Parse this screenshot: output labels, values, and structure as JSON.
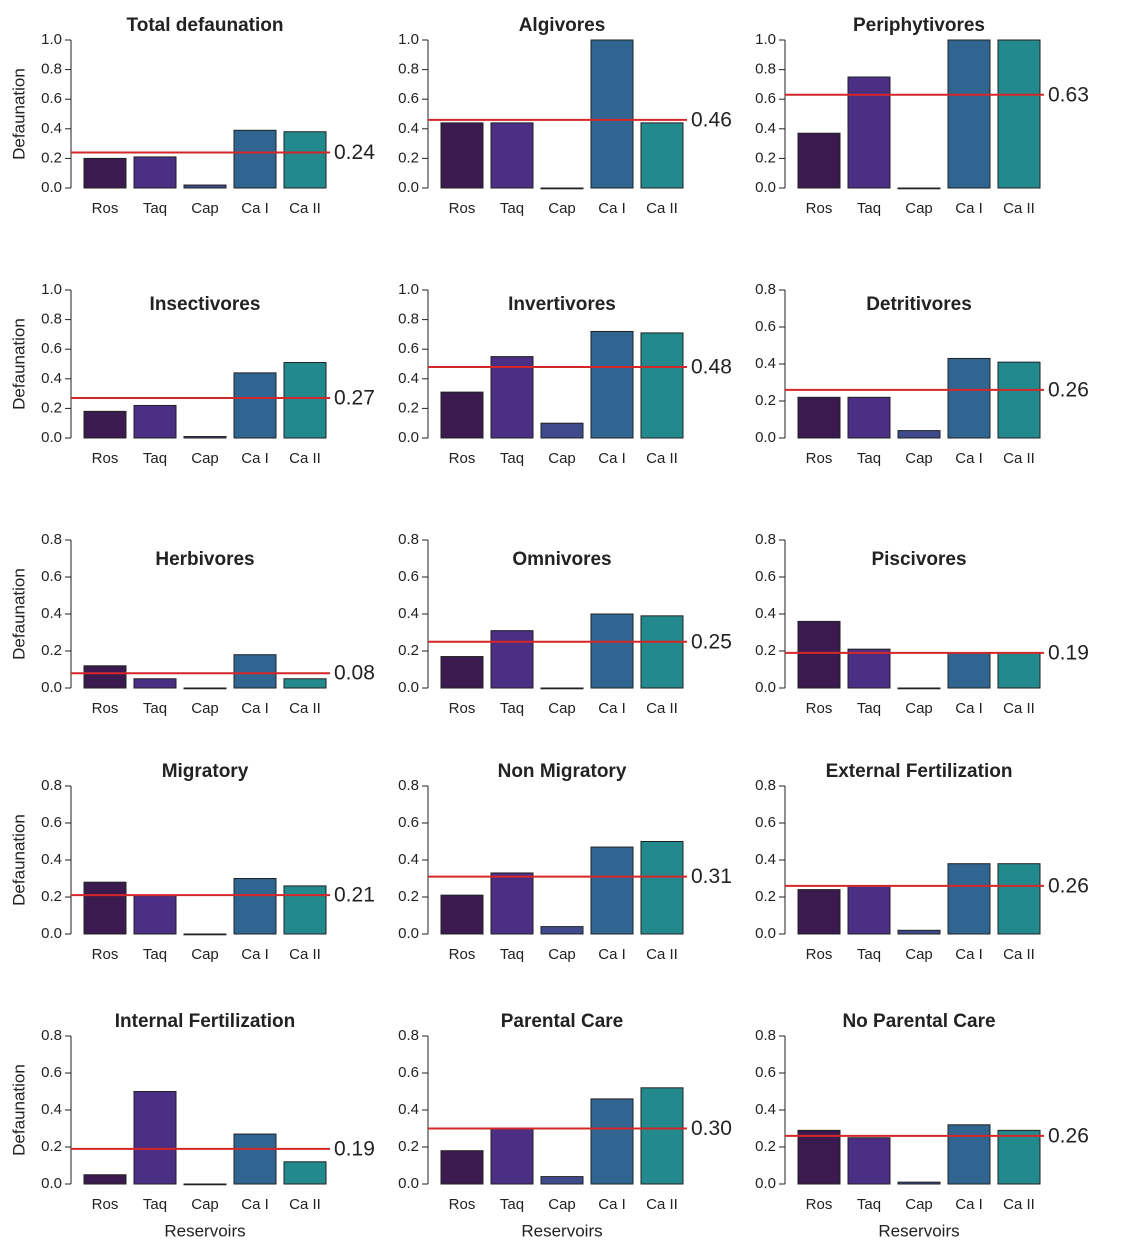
{
  "chart_data": [
    {
      "type": "bar",
      "title": "Total defaunation",
      "ylabel": "Defaunation",
      "categories": [
        "Ros",
        "Taq",
        "Cap",
        "Ca I",
        "Ca II"
      ],
      "values": [
        0.2,
        0.21,
        0.02,
        0.39,
        0.38
      ],
      "colors": [
        "#3b1a4f",
        "#4a2f85",
        "#3f4a8c",
        "#2f6590",
        "#228a8d"
      ],
      "ylim": [
        0,
        1
      ],
      "yticks": [
        {
          "value": 0,
          "label": "0.0"
        },
        0.2,
        0.4,
        0.6,
        0.8,
        {
          "value": 1,
          "label": "1.0"
        }
      ],
      "hline": 0.24,
      "hline_color": "#d62728"
    },
    {
      "type": "bar",
      "title": "Algivores",
      "categories": [
        "Ros",
        "Taq",
        "Cap",
        "Ca I",
        "Ca II"
      ],
      "values": [
        0.44,
        0.44,
        0,
        1.0,
        0.44
      ],
      "colors": [
        "#3b1a4f",
        "#4a2f85",
        "#3f4a8c",
        "#2f6590",
        "#228a8d"
      ],
      "ylim": [
        0,
        1
      ],
      "yticks": [
        {
          "value": 0,
          "label": "0.0"
        },
        0.2,
        0.4,
        0.6,
        0.8,
        {
          "value": 1,
          "label": "1.0"
        }
      ],
      "hline": 0.46,
      "hline_color": "#d62728"
    },
    {
      "type": "bar",
      "title": "Periphytivores",
      "categories": [
        "Ros",
        "Taq",
        "Cap",
        "Ca I",
        "Ca II"
      ],
      "values": [
        0.37,
        0.75,
        0,
        1.0,
        1.0
      ],
      "colors": [
        "#3b1a4f",
        "#4a2f85",
        "#3f4a8c",
        "#2f6590",
        "#228a8d"
      ],
      "ylim": [
        0,
        1
      ],
      "yticks": [
        {
          "value": 0,
          "label": "0.0"
        },
        0.2,
        0.4,
        0.6,
        0.8,
        {
          "value": 1,
          "label": "1.0"
        }
      ],
      "hline": 0.63,
      "hline_color": "#d62728"
    },
    {
      "type": "bar",
      "title": "Insectivores",
      "ylabel": "Defaunation",
      "categories": [
        "Ros",
        "Taq",
        "Cap",
        "Ca I",
        "Ca II"
      ],
      "values": [
        0.18,
        0.22,
        0.01,
        0.44,
        0.51
      ],
      "colors": [
        "#3b1a4f",
        "#4a2f85",
        "#3f4a8c",
        "#2f6590",
        "#228a8d"
      ],
      "ylim": [
        0,
        1
      ],
      "yticks": [
        {
          "value": 0,
          "label": "0.0"
        },
        0.2,
        0.4,
        0.6,
        0.8,
        {
          "value": 1,
          "label": "1.0"
        }
      ],
      "hline": 0.27,
      "hline_color": "#d62728"
    },
    {
      "type": "bar",
      "title": "Invertivores",
      "categories": [
        "Ros",
        "Taq",
        "Cap",
        "Ca I",
        "Ca II"
      ],
      "values": [
        0.31,
        0.55,
        0.1,
        0.72,
        0.71
      ],
      "colors": [
        "#3b1a4f",
        "#4a2f85",
        "#3f4a8c",
        "#2f6590",
        "#228a8d"
      ],
      "ylim": [
        0,
        1
      ],
      "yticks": [
        {
          "value": 0,
          "label": "0.0"
        },
        0.2,
        0.4,
        0.6,
        0.8,
        {
          "value": 1,
          "label": "1.0"
        }
      ],
      "hline": 0.48,
      "hline_color": "#d62728"
    },
    {
      "type": "bar",
      "title": "Detritivores",
      "categories": [
        "Ros",
        "Taq",
        "Cap",
        "Ca I",
        "Ca II"
      ],
      "values": [
        0.22,
        0.22,
        0.04,
        0.43,
        0.41
      ],
      "colors": [
        "#3b1a4f",
        "#4a2f85",
        "#3f4a8c",
        "#2f6590",
        "#228a8d"
      ],
      "ylim": [
        0,
        0.8
      ],
      "yticks": [
        {
          "value": 0,
          "label": "0.0"
        },
        0.2,
        0.4,
        0.6,
        0.8
      ],
      "hline": 0.26,
      "hline_color": "#d62728"
    },
    {
      "type": "bar",
      "title": "Herbivores",
      "ylabel": "Defaunation",
      "categories": [
        "Ros",
        "Taq",
        "Cap",
        "Ca I",
        "Ca II"
      ],
      "values": [
        0.12,
        0.05,
        0,
        0.18,
        0.05
      ],
      "colors": [
        "#3b1a4f",
        "#4a2f85",
        "#3f4a8c",
        "#2f6590",
        "#228a8d"
      ],
      "ylim": [
        0,
        0.8
      ],
      "yticks": [
        {
          "value": 0,
          "label": "0.0"
        },
        0.2,
        0.4,
        0.6,
        0.8
      ],
      "hline": 0.08,
      "hline_color": "#d62728"
    },
    {
      "type": "bar",
      "title": "Omnivores",
      "categories": [
        "Ros",
        "Taq",
        "Cap",
        "Ca I",
        "Ca II"
      ],
      "values": [
        0.17,
        0.31,
        0,
        0.4,
        0.39
      ],
      "colors": [
        "#3b1a4f",
        "#4a2f85",
        "#3f4a8c",
        "#2f6590",
        "#228a8d"
      ],
      "ylim": [
        0,
        0.8
      ],
      "yticks": [
        {
          "value": 0,
          "label": "0.0"
        },
        0.2,
        0.4,
        0.6,
        0.8
      ],
      "hline": 0.25,
      "hline_color": "#d62728"
    },
    {
      "type": "bar",
      "title": "Piscivores",
      "categories": [
        "Ros",
        "Taq",
        "Cap",
        "Ca I",
        "Ca II"
      ],
      "values": [
        0.36,
        0.21,
        0,
        0.19,
        0.19
      ],
      "colors": [
        "#3b1a4f",
        "#4a2f85",
        "#3f4a8c",
        "#2f6590",
        "#228a8d"
      ],
      "ylim": [
        0,
        0.8
      ],
      "yticks": [
        {
          "value": 0,
          "label": "0.0"
        },
        0.2,
        0.4,
        0.6,
        0.8
      ],
      "hline": 0.19,
      "hline_color": "#d62728"
    },
    {
      "type": "bar",
      "title": "Migratory",
      "ylabel": "Defaunation",
      "categories": [
        "Ros",
        "Taq",
        "Cap",
        "Ca I",
        "Ca II"
      ],
      "values": [
        0.28,
        0.21,
        0,
        0.3,
        0.26
      ],
      "colors": [
        "#3b1a4f",
        "#4a2f85",
        "#3f4a8c",
        "#2f6590",
        "#228a8d"
      ],
      "ylim": [
        0,
        0.8
      ],
      "yticks": [
        {
          "value": 0,
          "label": "0.0"
        },
        0.2,
        0.4,
        0.6,
        0.8
      ],
      "hline": 0.21,
      "hline_color": "#d62728"
    },
    {
      "type": "bar",
      "title": "Non Migratory",
      "categories": [
        "Ros",
        "Taq",
        "Cap",
        "Ca I",
        "Ca II"
      ],
      "values": [
        0.21,
        0.33,
        0.04,
        0.47,
        0.5
      ],
      "colors": [
        "#3b1a4f",
        "#4a2f85",
        "#3f4a8c",
        "#2f6590",
        "#228a8d"
      ],
      "ylim": [
        0,
        0.8
      ],
      "yticks": [
        {
          "value": 0,
          "label": "0.0"
        },
        0.2,
        0.4,
        0.6,
        0.8
      ],
      "hline": 0.31,
      "hline_color": "#d62728"
    },
    {
      "type": "bar",
      "title": "External Fertilization",
      "categories": [
        "Ros",
        "Taq",
        "Cap",
        "Ca I",
        "Ca II"
      ],
      "values": [
        0.24,
        0.26,
        0.02,
        0.38,
        0.38
      ],
      "colors": [
        "#3b1a4f",
        "#4a2f85",
        "#3f4a8c",
        "#2f6590",
        "#228a8d"
      ],
      "ylim": [
        0,
        0.8
      ],
      "yticks": [
        {
          "value": 0,
          "label": "0.0"
        },
        0.2,
        0.4,
        0.6,
        0.8
      ],
      "hline": 0.26,
      "hline_color": "#d62728"
    },
    {
      "type": "bar",
      "title": "Internal Fertilization",
      "ylabel": "Defaunation",
      "xlabel": "Reservoirs",
      "categories": [
        "Ros",
        "Taq",
        "Cap",
        "Ca I",
        "Ca II"
      ],
      "values": [
        0.05,
        0.5,
        0,
        0.27,
        0.12
      ],
      "colors": [
        "#3b1a4f",
        "#4a2f85",
        "#3f4a8c",
        "#2f6590",
        "#228a8d"
      ],
      "ylim": [
        0,
        0.8
      ],
      "yticks": [
        {
          "value": 0,
          "label": "0.0"
        },
        0.2,
        0.4,
        0.6,
        0.8
      ],
      "hline": 0.19,
      "hline_color": "#d62728"
    },
    {
      "type": "bar",
      "title": "Parental Care",
      "xlabel": "Reservoirs",
      "categories": [
        "Ros",
        "Taq",
        "Cap",
        "Ca I",
        "Ca II"
      ],
      "values": [
        0.18,
        0.3,
        0.04,
        0.46,
        0.52
      ],
      "colors": [
        "#3b1a4f",
        "#4a2f85",
        "#3f4a8c",
        "#2f6590",
        "#228a8d"
      ],
      "ylim": [
        0,
        0.8
      ],
      "yticks": [
        {
          "value": 0,
          "label": "0.0"
        },
        0.2,
        0.4,
        0.6,
        0.8
      ],
      "hline": {
        "value": 0.3,
        "label": "0.30"
      },
      "hline_color": "#d62728"
    },
    {
      "type": "bar",
      "title": "No Parental Care",
      "xlabel": "Reservoirs",
      "categories": [
        "Ros",
        "Taq",
        "Cap",
        "Ca I",
        "Ca II"
      ],
      "values": [
        0.29,
        0.25,
        0.01,
        0.32,
        0.29
      ],
      "colors": [
        "#3b1a4f",
        "#4a2f85",
        "#3f4a8c",
        "#2f6590",
        "#228a8d"
      ],
      "ylim": [
        0,
        0.8
      ],
      "yticks": [
        {
          "value": 0,
          "label": "0.0"
        },
        0.2,
        0.4,
        0.6,
        0.8
      ],
      "hline": 0.26,
      "hline_color": "#d62728"
    }
  ]
}
